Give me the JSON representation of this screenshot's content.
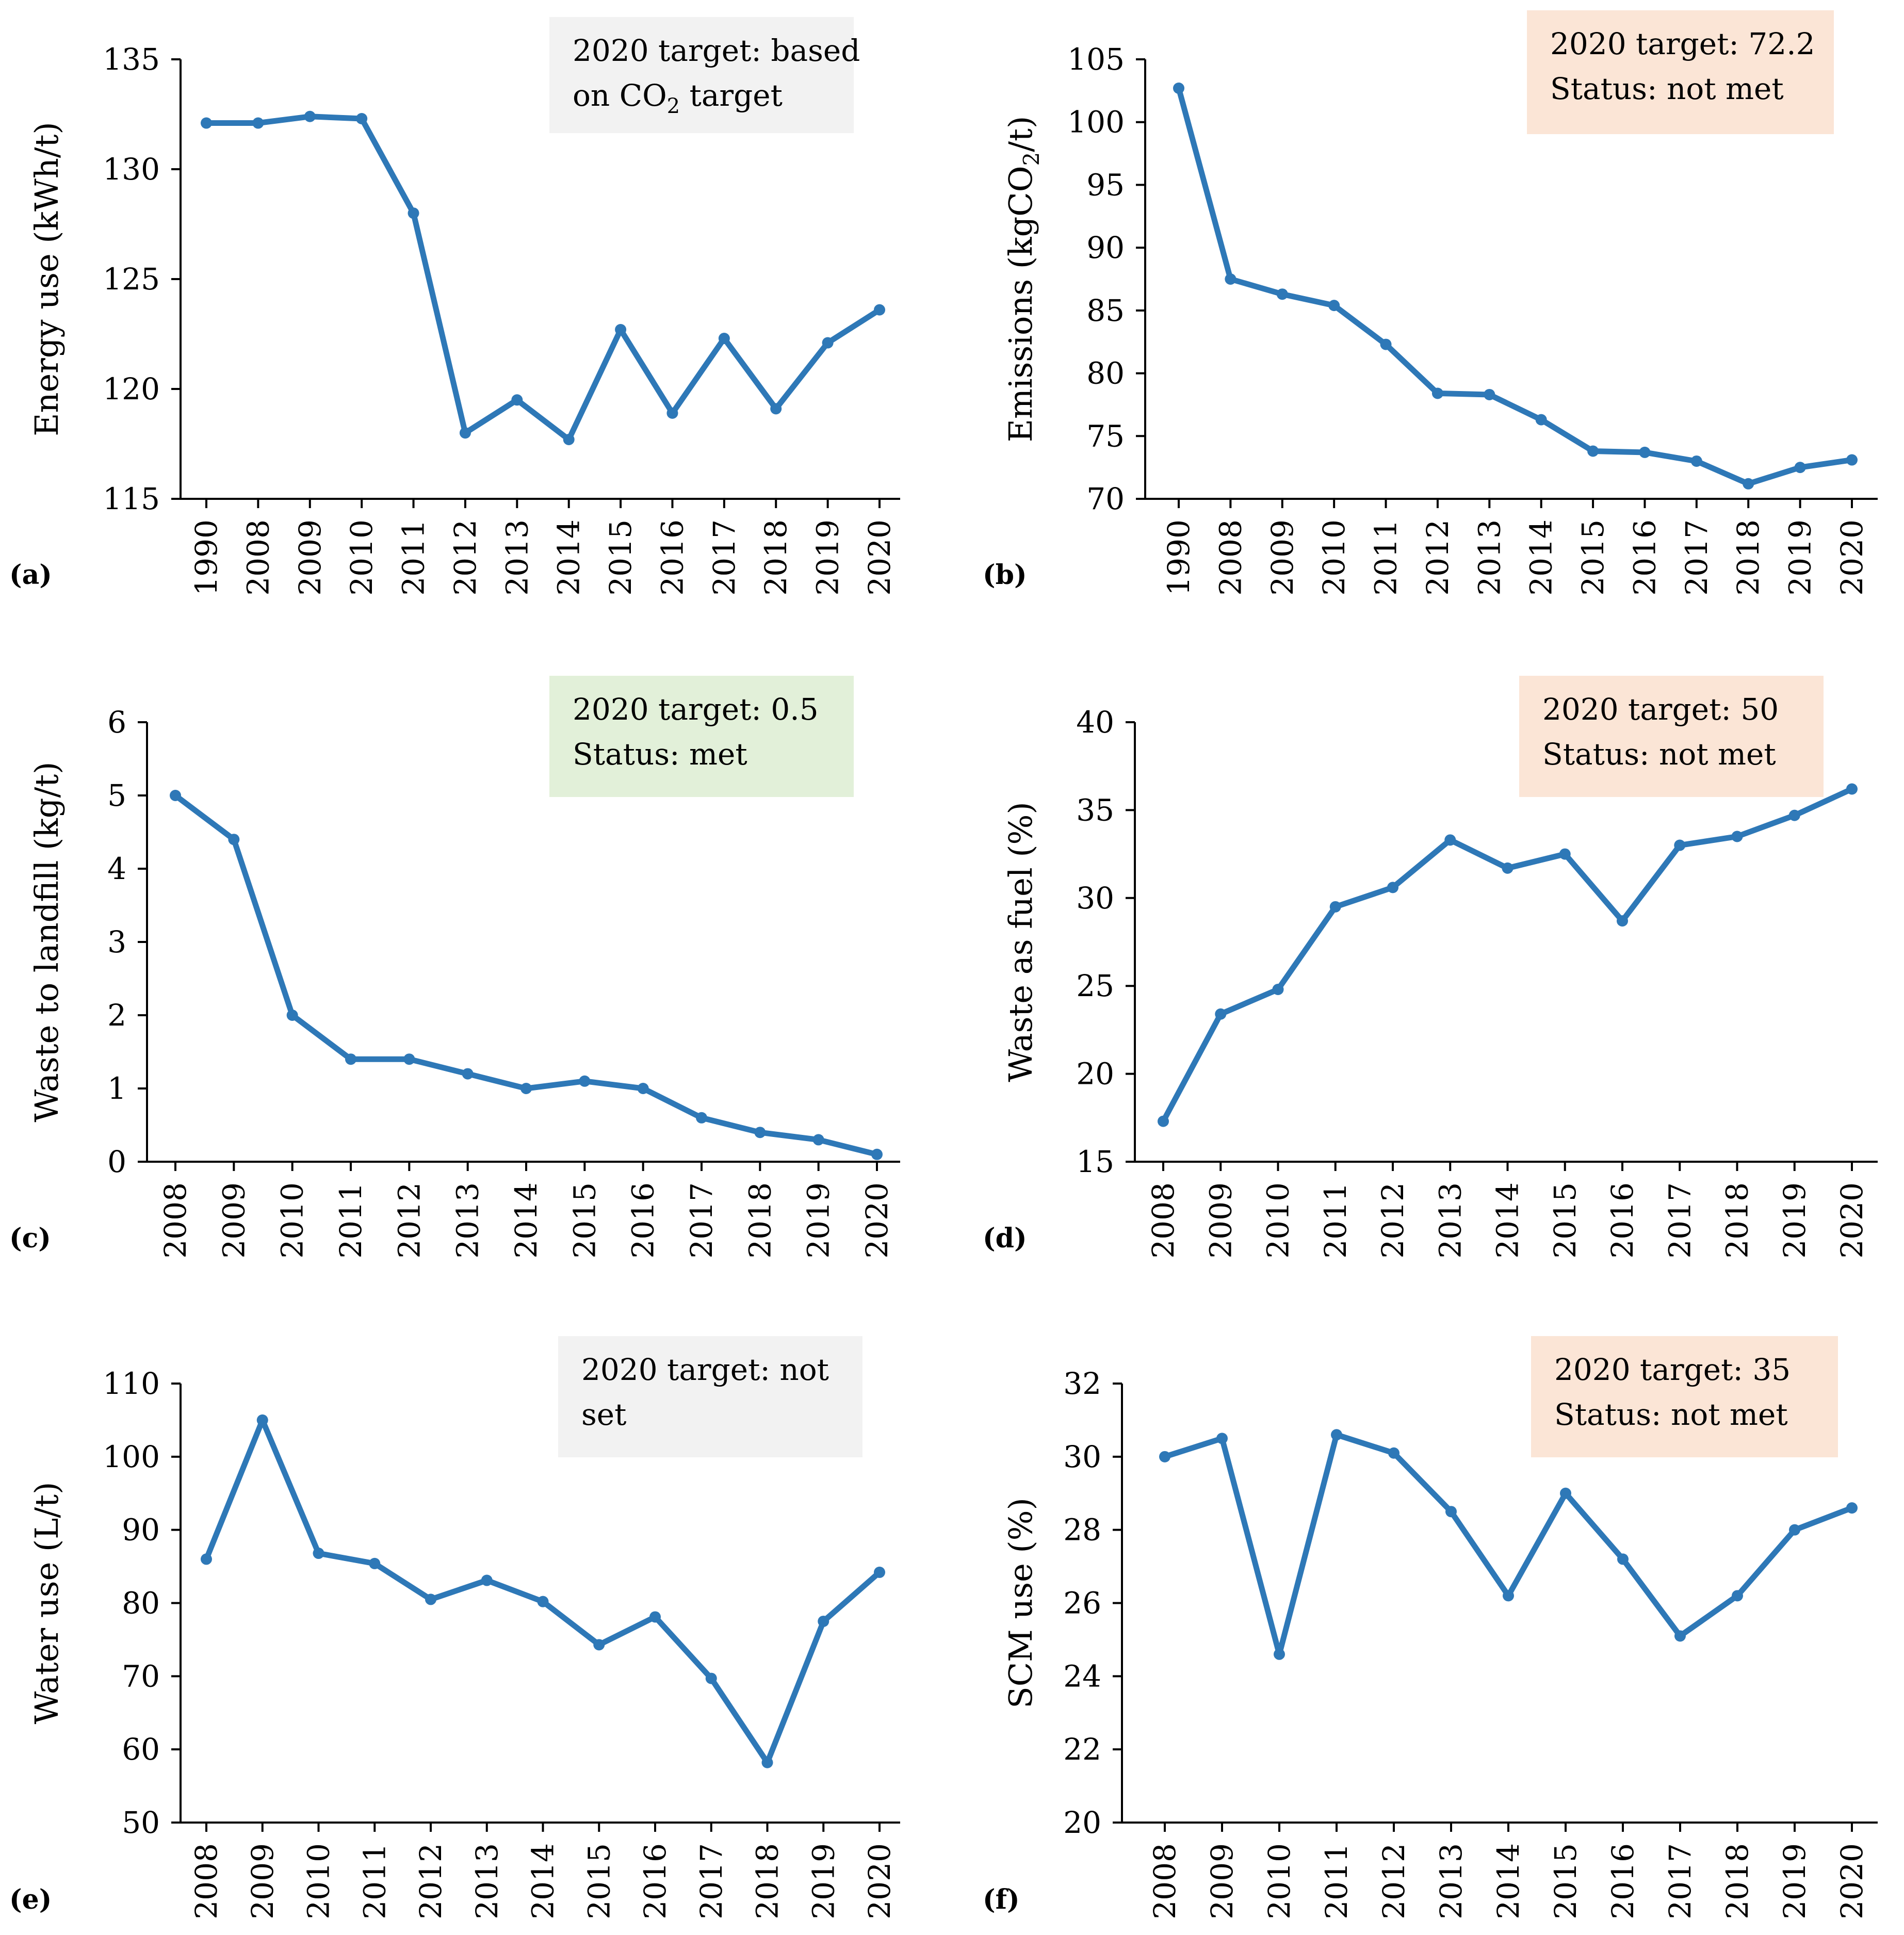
{
  "colors": {
    "line": "#2E78B7",
    "axis": "#000000",
    "box_gray": "#F2F2F2",
    "box_orange": "#FBE5D6",
    "box_green": "#E2F0D9"
  },
  "chart_data": [
    {
      "type": "line",
      "panel_label": "(a)",
      "ylabel": "Energy use (kWh/t)",
      "categories": [
        "1990",
        "2008",
        "2009",
        "2010",
        "2011",
        "2012",
        "2013",
        "2014",
        "2015",
        "2016",
        "2017",
        "2018",
        "2019",
        "2020"
      ],
      "values": [
        132.1,
        132.1,
        132.4,
        132.3,
        128.0,
        118.0,
        119.5,
        117.7,
        122.7,
        118.9,
        122.3,
        119.1,
        122.1,
        123.6
      ],
      "ylim": [
        115,
        135
      ],
      "yticks": [
        "115",
        "120",
        "125",
        "130",
        "135"
      ],
      "target_box": {
        "line1": "2020 target: based",
        "line2_pre": "on CO",
        "line2_sub": "2",
        "line2_post": " target",
        "style": "gray"
      }
    },
    {
      "type": "line",
      "panel_label": "(b)",
      "ylabel_pre": "Emissions (kgCO",
      "ylabel_sub": "2",
      "ylabel_post": "/t)",
      "categories": [
        "1990",
        "2008",
        "2009",
        "2010",
        "2011",
        "2012",
        "2013",
        "2014",
        "2015",
        "2016",
        "2017",
        "2018",
        "2019",
        "2020"
      ],
      "values": [
        102.7,
        87.5,
        86.3,
        85.4,
        82.3,
        78.4,
        78.3,
        76.3,
        73.8,
        73.7,
        73.0,
        71.2,
        72.5,
        73.1
      ],
      "ylim": [
        70,
        105
      ],
      "yticks": [
        "70",
        "75",
        "80",
        "85",
        "90",
        "95",
        "100",
        "105"
      ],
      "target_box": {
        "line1": "2020 target: 72.2",
        "line2": "Status: not met",
        "style": "orange"
      }
    },
    {
      "type": "line",
      "panel_label": "(c)",
      "ylabel": "Waste to landfill (kg/t)",
      "categories": [
        "2008",
        "2009",
        "2010",
        "2011",
        "2012",
        "2013",
        "2014",
        "2015",
        "2016",
        "2017",
        "2018",
        "2019",
        "2020"
      ],
      "values": [
        5.0,
        4.4,
        2.0,
        1.4,
        1.4,
        1.2,
        1.0,
        1.1,
        1.0,
        0.6,
        0.4,
        0.3,
        0.1
      ],
      "ylim": [
        0,
        6
      ],
      "yticks": [
        "0",
        "1",
        "2",
        "3",
        "4",
        "5",
        "6"
      ],
      "target_box": {
        "line1": "2020 target: 0.5",
        "line2": "Status: met",
        "style": "green"
      }
    },
    {
      "type": "line",
      "panel_label": "(d)",
      "ylabel": "Waste as fuel (%)",
      "categories": [
        "2008",
        "2009",
        "2010",
        "2011",
        "2012",
        "2013",
        "2014",
        "2015",
        "2016",
        "2017",
        "2018",
        "2019",
        "2020"
      ],
      "values": [
        17.3,
        23.4,
        24.8,
        29.5,
        30.6,
        33.3,
        31.7,
        32.5,
        28.7,
        33.0,
        33.5,
        34.7,
        36.2
      ],
      "ylim": [
        15,
        40
      ],
      "yticks": [
        "15",
        "20",
        "25",
        "30",
        "35",
        "40"
      ],
      "target_box": {
        "line1": "2020 target: 50",
        "line2": "Status: not met",
        "style": "orange"
      }
    },
    {
      "type": "line",
      "panel_label": "(e)",
      "ylabel": "Water use (L/t)",
      "categories": [
        "2008",
        "2009",
        "2010",
        "2011",
        "2012",
        "2013",
        "2014",
        "2015",
        "2016",
        "2017",
        "2018",
        "2019",
        "2020"
      ],
      "values": [
        86.0,
        105.0,
        86.8,
        85.4,
        80.5,
        83.1,
        80.2,
        74.3,
        78.1,
        69.7,
        58.2,
        77.5,
        84.2
      ],
      "ylim": [
        50,
        110
      ],
      "yticks": [
        "50",
        "60",
        "70",
        "80",
        "90",
        "100",
        "110"
      ],
      "target_box": {
        "line1": "2020 target: not",
        "line2": "set",
        "style": "gray"
      }
    },
    {
      "type": "line",
      "panel_label": "(f)",
      "ylabel": "SCM use (%)",
      "categories": [
        "2008",
        "2009",
        "2010",
        "2011",
        "2012",
        "2013",
        "2014",
        "2015",
        "2016",
        "2017",
        "2018",
        "2019",
        "2020"
      ],
      "values": [
        30.0,
        30.5,
        24.6,
        30.6,
        30.1,
        28.5,
        26.2,
        29.0,
        27.2,
        25.1,
        26.2,
        28.0,
        28.6
      ],
      "ylim": [
        20,
        32
      ],
      "yticks": [
        "20",
        "22",
        "24",
        "26",
        "28",
        "30",
        "32"
      ],
      "target_box": {
        "line1": "2020 target: 35",
        "line2": "Status: not met",
        "style": "orange"
      }
    }
  ]
}
